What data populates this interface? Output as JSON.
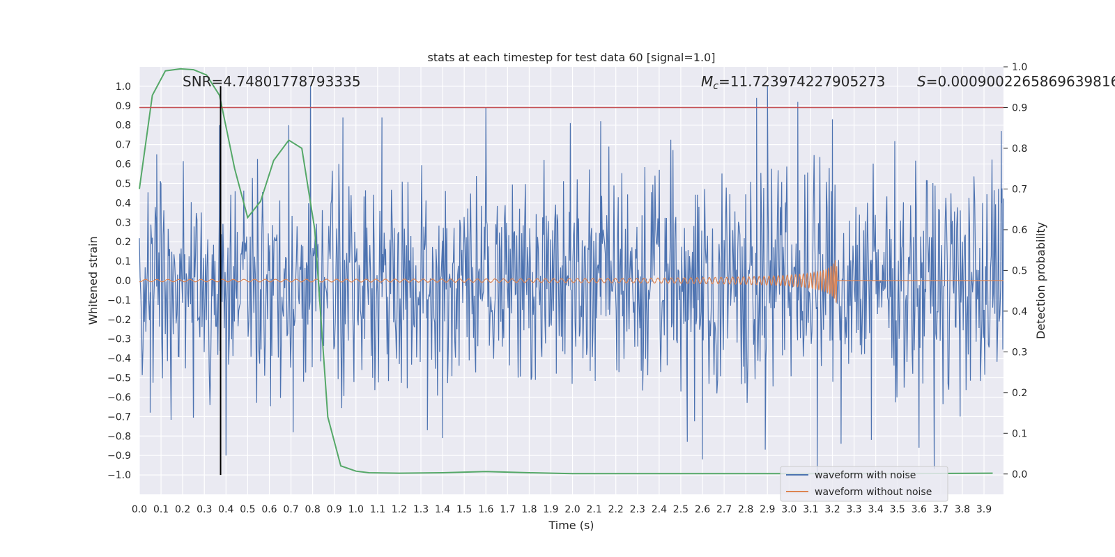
{
  "chart_data": {
    "type": "line",
    "title": "stats at each timestep for test data 60 [signal=1.0]",
    "xlabel": "Time (s)",
    "ylabel": "Whitened strain",
    "ylabel_right": "Detection probability",
    "xlim": [
      0.0,
      3.99
    ],
    "ylim": [
      -1.1,
      1.1
    ],
    "ylim_right": [
      -0.05,
      1.0
    ],
    "grid": true,
    "legend_position": "lower-right",
    "x_ticks": [
      "0.0",
      "0.1",
      "0.2",
      "0.3",
      "0.4",
      "0.5",
      "0.6",
      "0.7",
      "0.8",
      "0.9",
      "1.0",
      "1.1",
      "1.2",
      "1.3",
      "1.4",
      "1.5",
      "1.6",
      "1.7",
      "1.8",
      "1.9",
      "2.0",
      "2.1",
      "2.2",
      "2.3",
      "2.4",
      "2.5",
      "2.6",
      "2.7",
      "2.8",
      "2.9",
      "3.0",
      "3.1",
      "3.2",
      "3.3",
      "3.4",
      "3.5",
      "3.6",
      "3.7",
      "3.8",
      "3.9"
    ],
    "y_ticks": [
      "1.0",
      "0.9",
      "0.8",
      "0.7",
      "0.6",
      "0.5",
      "0.4",
      "0.3",
      "0.2",
      "0.1",
      "0.0",
      "−0.1",
      "−0.2",
      "−0.3",
      "−0.4",
      "−0.5",
      "−0.6",
      "−0.7",
      "−0.8",
      "−0.9",
      "−1.0"
    ],
    "y_ticks_right": [
      "1.0",
      "0.9",
      "0.8",
      "0.7",
      "0.6",
      "0.5",
      "0.4",
      "0.3",
      "0.2",
      "0.1",
      "0.0"
    ],
    "annotations": {
      "snr": "SNR=4.74801778793335",
      "mc_symbol": "M",
      "mc_sub": "c",
      "mc_value": "=11.723974227905273",
      "s_symbol": "S",
      "s_value": "=0.0009002265869639816"
    },
    "series": [
      {
        "name": "waveform with noise",
        "color": "#4c72b0",
        "axis": "left",
        "kind": "noise",
        "description_range": [
          -1.0,
          1.0
        ],
        "spike_points": [
          [
            0.05,
            -0.68
          ],
          [
            0.08,
            0.65
          ],
          [
            0.25,
            -0.66
          ],
          [
            0.37,
            0.8
          ],
          [
            0.4,
            -0.9
          ],
          [
            0.69,
            0.8
          ],
          [
            0.71,
            -0.78
          ],
          [
            0.79,
            1.0
          ],
          [
            0.94,
            0.84
          ],
          [
            1.12,
            0.84
          ],
          [
            1.33,
            -0.77
          ],
          [
            1.4,
            -0.81
          ],
          [
            1.6,
            0.89
          ],
          [
            1.99,
            0.81
          ],
          [
            2.13,
            0.82
          ],
          [
            2.53,
            -0.83
          ],
          [
            2.6,
            -0.92
          ],
          [
            2.85,
            0.94
          ],
          [
            2.89,
            -0.87
          ],
          [
            2.9,
            1.0
          ],
          [
            3.04,
            0.92
          ],
          [
            3.13,
            -1.0
          ],
          [
            3.2,
            0.83
          ],
          [
            3.24,
            -0.84
          ],
          [
            3.38,
            -0.82
          ],
          [
            3.6,
            -0.86
          ],
          [
            3.67,
            -0.97
          ],
          [
            3.79,
            -0.7
          ],
          [
            3.98,
            0.77
          ]
        ]
      },
      {
        "name": "waveform without noise",
        "color": "#dd8452",
        "axis": "left",
        "kind": "chirp",
        "end_time": 3.22,
        "max_amplitude": 0.17
      },
      {
        "name": "",
        "color": "#55a868",
        "axis": "right",
        "x": [
          0.0,
          0.06,
          0.12,
          0.19,
          0.25,
          0.31,
          0.37,
          0.44,
          0.5,
          0.56,
          0.62,
          0.69,
          0.75,
          0.81,
          0.87,
          0.93,
          1.0,
          1.06,
          1.2,
          1.4,
          1.6,
          1.8,
          2.0,
          2.5,
          3.0,
          3.5,
          3.94
        ],
        "y": [
          0.7,
          0.93,
          0.99,
          0.995,
          0.993,
          0.98,
          0.93,
          0.75,
          0.63,
          0.67,
          0.77,
          0.82,
          0.8,
          0.6,
          0.14,
          0.02,
          0.007,
          0.003,
          0.002,
          0.003,
          0.006,
          0.003,
          0.001,
          0.001,
          0.001,
          0.001,
          0.002
        ]
      }
    ],
    "hlines": [
      {
        "axis": "right",
        "y": 0.9,
        "color": "#c44e52"
      }
    ],
    "vlines": [
      {
        "x": 0.375,
        "y_range": [
          -1.0,
          1.0
        ],
        "color": "#000000"
      }
    ]
  }
}
